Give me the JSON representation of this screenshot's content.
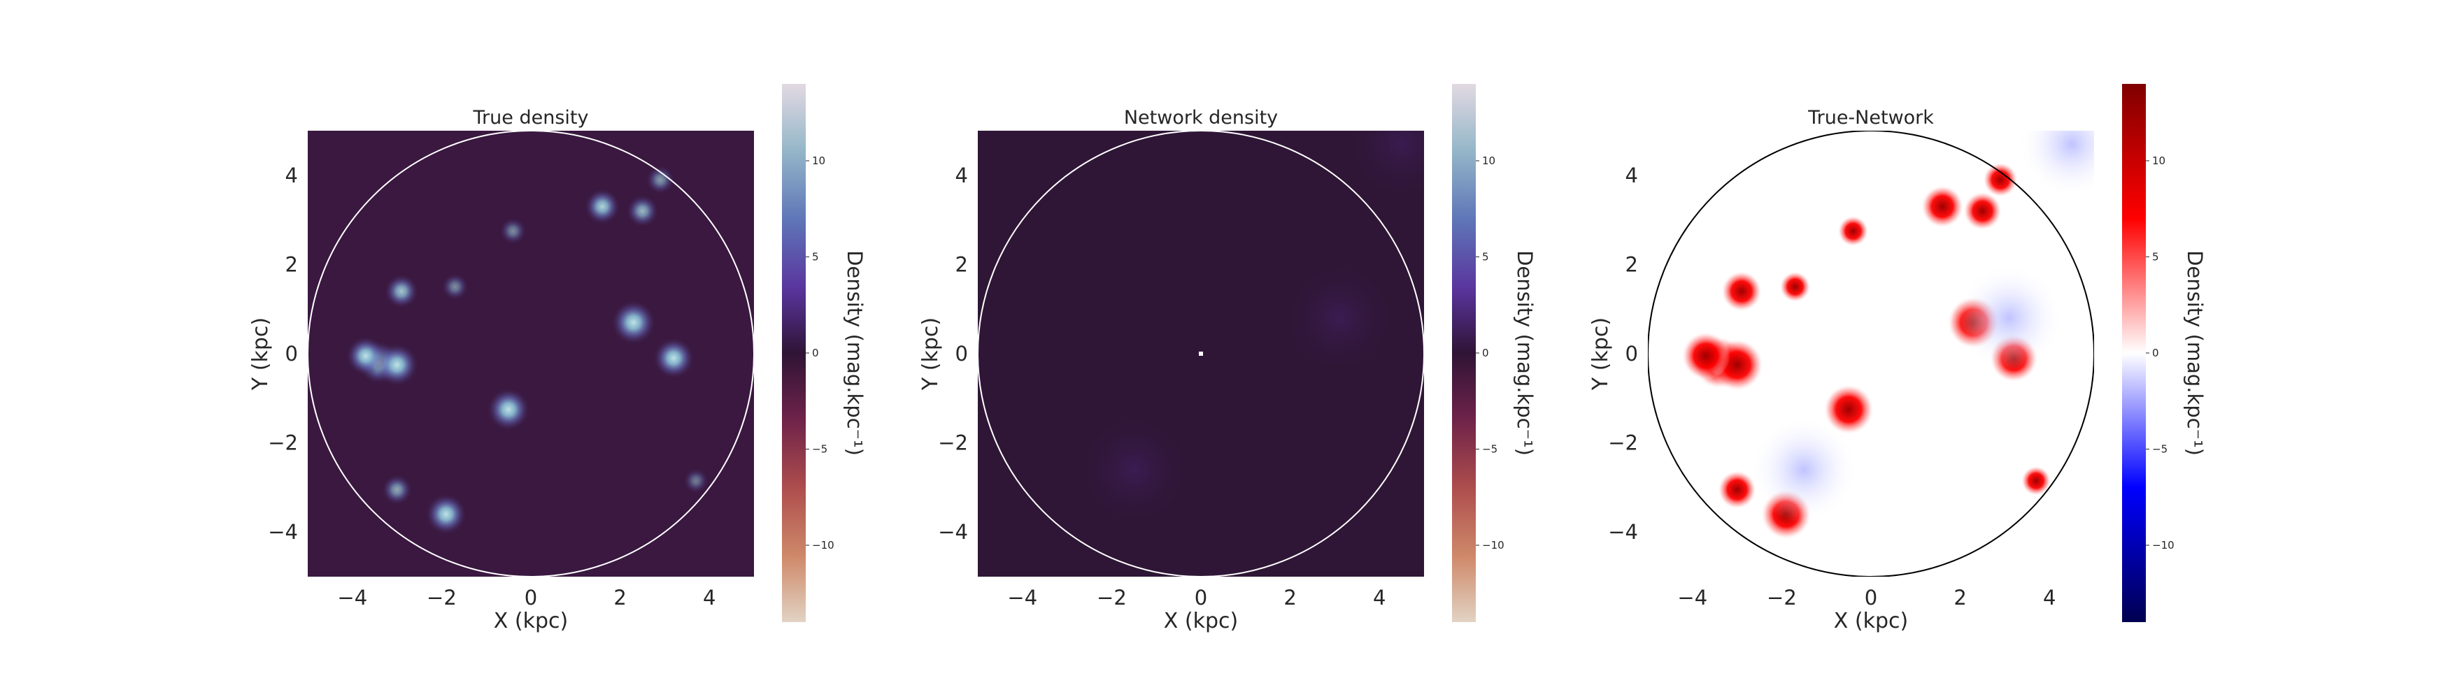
{
  "chart_data": [
    {
      "type": "heatmap",
      "title": "True density",
      "xlabel": "X (kpc)",
      "ylabel": "Y (kpc)",
      "xlim": [
        -5,
        5
      ],
      "ylim": [
        -5,
        5
      ],
      "xticks": [
        "−4",
        "−2",
        "0",
        "2",
        "4"
      ],
      "yticks": [
        "4",
        "2",
        "0",
        "−2",
        "−4"
      ],
      "colormap": "twilight",
      "background": "#3a1840",
      "boundary_circle": {
        "radius_kpc": 5,
        "color": "#ffffff"
      },
      "colorbar": {
        "label": "Density (mag.kpc⁻¹)",
        "ticks": [
          "10",
          "5",
          "0",
          "−5",
          "−10"
        ],
        "range": [
          -14,
          14
        ]
      },
      "features": [
        {
          "x": -3.4,
          "y": -0.2,
          "amplitude": 12
        },
        {
          "x": -3.0,
          "y": -0.25,
          "amplitude": 12
        },
        {
          "x": -3.7,
          "y": -0.05,
          "amplitude": 10
        },
        {
          "x": 2.3,
          "y": 0.7,
          "amplitude": 13
        },
        {
          "x": 3.2,
          "y": -0.1,
          "amplitude": 11
        },
        {
          "x": -0.5,
          "y": -1.25,
          "amplitude": 12
        },
        {
          "x": -1.9,
          "y": -3.6,
          "amplitude": 11
        },
        {
          "x": -2.9,
          "y": 1.4,
          "amplitude": 7
        },
        {
          "x": -1.7,
          "y": 1.5,
          "amplitude": 3
        },
        {
          "x": -3.0,
          "y": -3.05,
          "amplitude": 5
        },
        {
          "x": 1.6,
          "y": 3.3,
          "amplitude": 8
        },
        {
          "x": 2.5,
          "y": 3.2,
          "amplitude": 6
        },
        {
          "x": 2.9,
          "y": 3.9,
          "amplitude": 4
        },
        {
          "x": -0.4,
          "y": 2.75,
          "amplitude": 3
        },
        {
          "x": 3.7,
          "y": -2.85,
          "amplitude": 2
        }
      ]
    },
    {
      "type": "heatmap",
      "title": "Network density",
      "xlabel": "X (kpc)",
      "ylabel": "Y (kpc)",
      "xlim": [
        -5,
        5
      ],
      "ylim": [
        -5,
        5
      ],
      "xticks": [
        "−4",
        "−2",
        "0",
        "2",
        "4"
      ],
      "yticks": [
        "4",
        "2",
        "0",
        "−2",
        "−4"
      ],
      "colormap": "twilight",
      "background": "#2f1636",
      "boundary_circle": {
        "radius_kpc": 5,
        "color": "#ffffff"
      },
      "colorbar": {
        "label": "Density (mag.kpc⁻¹)",
        "ticks": [
          "10",
          "5",
          "0",
          "−5",
          "−10"
        ],
        "range": [
          -14,
          14
        ]
      },
      "center_marker": {
        "x": 0,
        "y": 0
      },
      "features": [
        {
          "x": 3.1,
          "y": 0.8,
          "amplitude": 2
        },
        {
          "x": -1.5,
          "y": -2.6,
          "amplitude": 2
        },
        {
          "x": 4.5,
          "y": 4.7,
          "amplitude": 1.5
        }
      ]
    },
    {
      "type": "heatmap",
      "title": "True-Network",
      "xlabel": "X (kpc)",
      "ylabel": "Y (kpc)",
      "xlim": [
        -5,
        5
      ],
      "ylim": [
        -5,
        5
      ],
      "xticks": [
        "−4",
        "−2",
        "0",
        "2",
        "4"
      ],
      "yticks": [
        "4",
        "2",
        "0",
        "−2",
        "−4"
      ],
      "colormap": "seismic",
      "background": "#ffffff",
      "boundary_circle": {
        "radius_kpc": 5,
        "color": "#000000"
      },
      "colorbar": {
        "label": "Density (mag.kpc⁻¹)",
        "ticks": [
          "10",
          "5",
          "0",
          "−5",
          "−10"
        ],
        "range": [
          -14,
          14
        ]
      },
      "features": [
        {
          "x": -3.4,
          "y": -0.2,
          "amplitude": 14
        },
        {
          "x": -3.0,
          "y": -0.25,
          "amplitude": 14
        },
        {
          "x": -3.7,
          "y": -0.05,
          "amplitude": 12
        },
        {
          "x": 2.3,
          "y": 0.7,
          "amplitude": 14
        },
        {
          "x": 3.2,
          "y": -0.1,
          "amplitude": 12
        },
        {
          "x": -0.5,
          "y": -1.25,
          "amplitude": 13
        },
        {
          "x": -1.9,
          "y": -3.6,
          "amplitude": 13
        },
        {
          "x": -2.9,
          "y": 1.4,
          "amplitude": 8
        },
        {
          "x": -1.7,
          "y": 1.5,
          "amplitude": 3
        },
        {
          "x": -3.0,
          "y": -3.05,
          "amplitude": 7
        },
        {
          "x": 1.6,
          "y": 3.3,
          "amplitude": 9
        },
        {
          "x": 2.5,
          "y": 3.2,
          "amplitude": 7
        },
        {
          "x": 2.9,
          "y": 3.9,
          "amplitude": 5
        },
        {
          "x": -0.4,
          "y": 2.75,
          "amplitude": 3
        },
        {
          "x": 3.7,
          "y": -2.85,
          "amplitude": 2.5
        },
        {
          "x": 3.1,
          "y": 0.8,
          "amplitude": -2
        },
        {
          "x": -1.5,
          "y": -2.6,
          "amplitude": -2.5
        },
        {
          "x": 4.5,
          "y": 4.7,
          "amplitude": -1.5
        }
      ]
    }
  ]
}
